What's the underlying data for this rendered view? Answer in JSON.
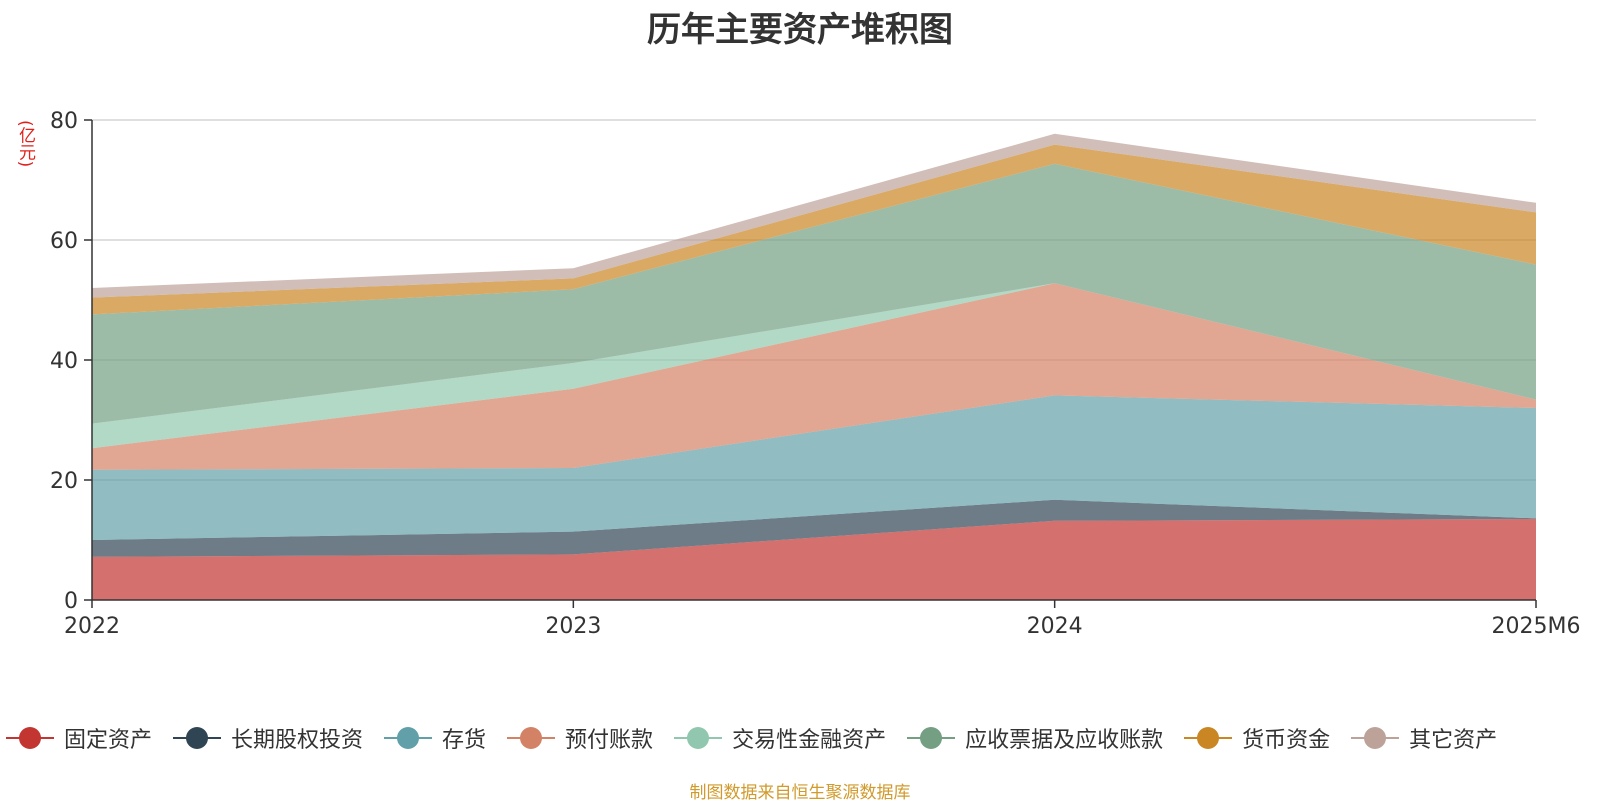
{
  "chart_data": {
    "type": "area",
    "stacked": true,
    "title": "历年主要资产堆积图",
    "ylabel": "(亿元)",
    "xlabel": "",
    "categories": [
      "2022",
      "2023",
      "2024",
      "2025M6"
    ],
    "ylim": [
      0,
      80
    ],
    "yticks": [
      0,
      20,
      40,
      60,
      80
    ],
    "grid": true,
    "legend_position": "bottom",
    "series": [
      {
        "name": "固定资产",
        "color": "#c23531",
        "values": [
          7.2,
          7.6,
          13.2,
          13.5
        ]
      },
      {
        "name": "长期股权投资",
        "color": "#2f4554",
        "values": [
          2.8,
          3.8,
          3.5,
          0.1
        ]
      },
      {
        "name": "存货",
        "color": "#61a0a8",
        "values": [
          11.7,
          10.6,
          17.4,
          18.4
        ]
      },
      {
        "name": "预付账款",
        "color": "#d48265",
        "values": [
          3.6,
          13.2,
          18.7,
          1.4
        ]
      },
      {
        "name": "交易性金融资产",
        "color": "#91c7ae",
        "values": [
          4.1,
          4.3,
          0.0,
          0.0
        ]
      },
      {
        "name": "应收票据及应收账款",
        "color": "#749f83",
        "values": [
          18.2,
          12.3,
          19.9,
          22.5
        ]
      },
      {
        "name": "货币资金",
        "color": "#ca8622",
        "values": [
          2.8,
          1.8,
          3.2,
          8.7
        ]
      },
      {
        "name": "其它资产",
        "color": "#bda29a",
        "values": [
          1.6,
          1.7,
          1.8,
          1.6
        ]
      }
    ]
  },
  "footer": {
    "source_text": "制图数据来自恒生聚源数据库"
  }
}
